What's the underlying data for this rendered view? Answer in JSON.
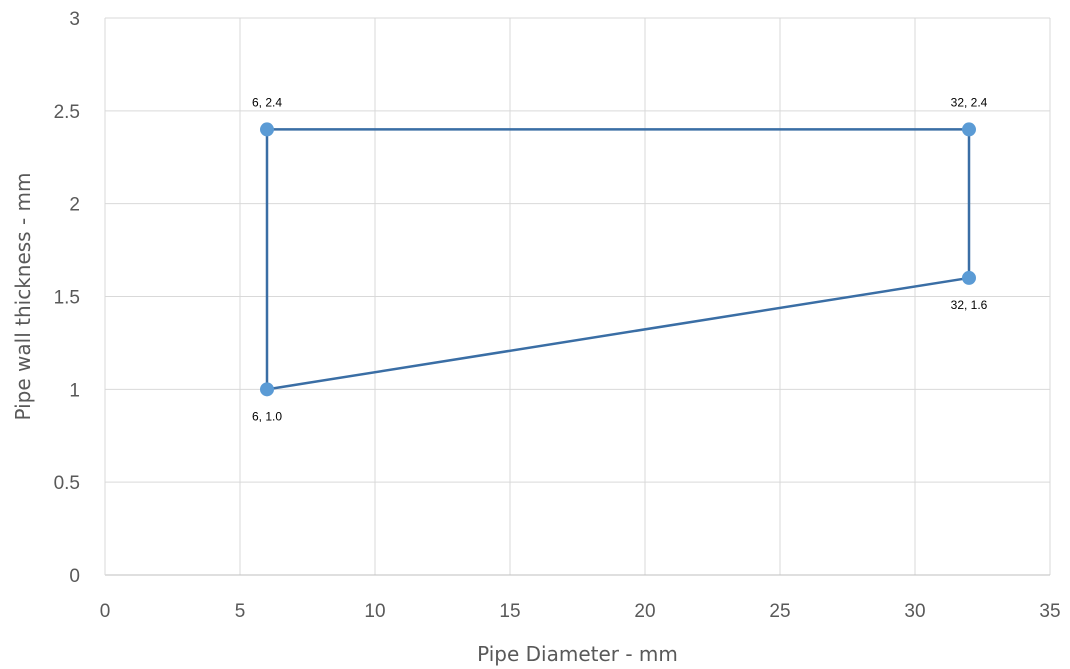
{
  "chart_data": {
    "type": "scatter",
    "title": "",
    "xlabel": "Pipe Diameter - mm",
    "ylabel": "Pipe wall thickness - mm",
    "xlim": [
      0,
      35
    ],
    "ylim": [
      0,
      3
    ],
    "x_ticks": [
      "0",
      "5",
      "10",
      "15",
      "20",
      "25",
      "30",
      "35"
    ],
    "y_ticks": [
      "0",
      "0.5",
      "1",
      "1.5",
      "2",
      "2.5",
      "3"
    ],
    "grid": true,
    "legend": "none",
    "series": [
      {
        "points": [
          {
            "x": 6,
            "y": 1.0,
            "label": "6, 1.0",
            "label_pos": "below"
          },
          {
            "x": 6,
            "y": 2.4,
            "label": "6, 2.4",
            "label_pos": "above"
          },
          {
            "x": 32,
            "y": 2.4,
            "label": "32, 2.4",
            "label_pos": "above"
          },
          {
            "x": 32,
            "y": 1.6,
            "label": "32, 1.6",
            "label_pos": "below"
          },
          {
            "x": 6,
            "y": 1.0
          }
        ],
        "line_color": "#3a6ea5",
        "marker_color": "#5b9bd5"
      }
    ],
    "colors": {
      "grid": "#d9d9d9",
      "axis": "#bfbfbf",
      "text": "#595959"
    }
  }
}
